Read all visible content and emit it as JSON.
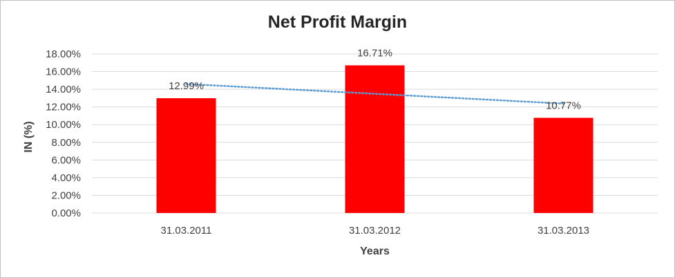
{
  "chart_data": {
    "type": "bar",
    "title": "Net Profit Margin",
    "xlabel": "Years",
    "ylabel": "IN (%)",
    "categories": [
      "31.03.2011",
      "31.03.2012",
      "31.03.2013"
    ],
    "values": [
      12.99,
      16.71,
      10.77
    ],
    "data_labels": [
      "12.99%",
      "16.71%",
      "10.77%"
    ],
    "ylim": [
      0,
      18
    ],
    "yticks": [
      0,
      2,
      4,
      6,
      8,
      10,
      12,
      14,
      16,
      18
    ],
    "ytick_labels": [
      "0.00%",
      "2.00%",
      "4.00%",
      "6.00%",
      "8.00%",
      "10.00%",
      "12.00%",
      "14.00%",
      "16.00%",
      "18.00%"
    ],
    "grid": true,
    "legend": "none",
    "trendline": {
      "type": "linear",
      "style": "dotted",
      "color": "#5b9bd5"
    },
    "colors": {
      "bar": "#ff0000",
      "grid": "#d9d9d9",
      "text": "#404040",
      "title": "#262626"
    }
  }
}
